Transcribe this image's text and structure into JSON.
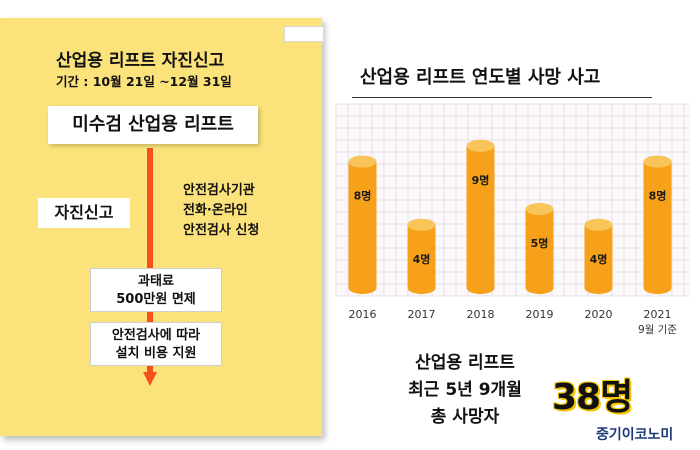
{
  "left_panel": {
    "title": "산업용 리프트 자진신고",
    "period": "기간 : 10월 21일 ~12월 31일",
    "main_box": "미수검 산업용 리프트",
    "self_report_box": "자진신고",
    "side_text": [
      "안전검사기관",
      "전화·온라인",
      "안전검사 신청"
    ],
    "fine_box": [
      "과태료",
      "500만원 면제"
    ],
    "support_box": [
      "안전검사에 따라",
      "설치 비용 지원"
    ]
  },
  "chart_data": {
    "type": "bar",
    "title": "산업용 리프트 연도별 사망 사고",
    "categories": [
      "2016",
      "2017",
      "2018",
      "2019",
      "2020",
      "2021"
    ],
    "category_sublabels": [
      "",
      "",
      "",
      "",
      "",
      "9월 기준"
    ],
    "values": [
      8,
      4,
      9,
      5,
      4,
      8
    ],
    "value_labels": [
      "8명",
      "4명",
      "9명",
      "5명",
      "4명",
      "8명"
    ],
    "ylim": [
      0,
      10
    ],
    "grid": true,
    "bar_color": "#f7a11a",
    "bar_top_color": "#f9c45a",
    "grid_color": "#e6dfe6"
  },
  "summary": {
    "lines": [
      "산업용 리프트",
      "최근 5년 9개월",
      "총 사망자"
    ],
    "total": "38명"
  },
  "brand": "중기이코노미"
}
